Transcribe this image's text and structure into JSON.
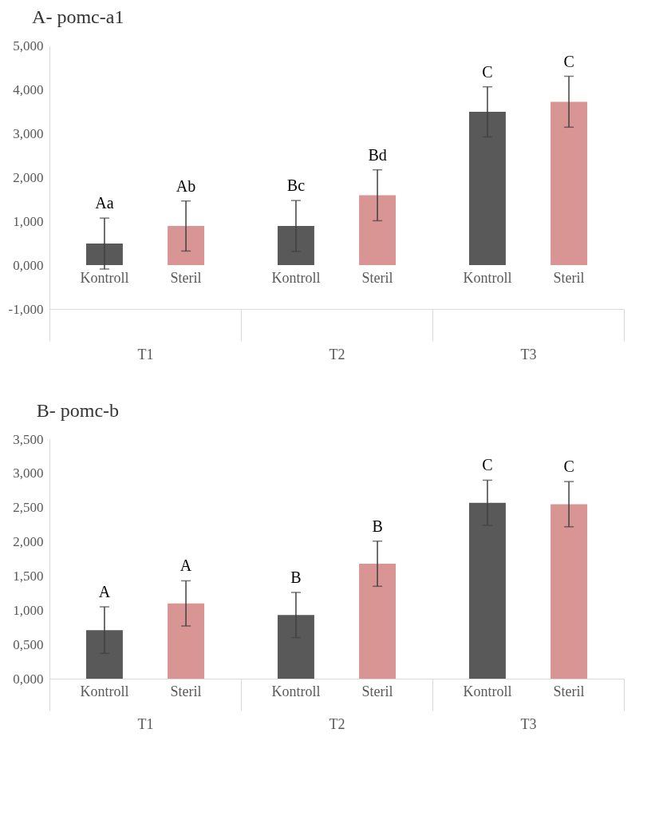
{
  "chart_data": [
    {
      "type": "bar",
      "title": "A- pomc-a1",
      "categories": [
        "T1",
        "T2",
        "T3"
      ],
      "series": [
        {
          "name": "Kontroll",
          "color": "#595959",
          "values": [
            0.49,
            0.89,
            3.49
          ],
          "errors": [
            0.58,
            0.58,
            0.57
          ],
          "value_labels": [
            "Aa",
            "Bc",
            "C"
          ]
        },
        {
          "name": "Steril",
          "color": "#d99594",
          "values": [
            0.89,
            1.59,
            3.72
          ],
          "errors": [
            0.57,
            0.58,
            0.58
          ],
          "value_labels": [
            "Ab",
            "Bd",
            "C"
          ]
        }
      ],
      "ylim": [
        -1,
        5
      ],
      "yticks": [
        {
          "value": -1,
          "label": "-1,000"
        },
        {
          "value": 0,
          "label": "0,000"
        },
        {
          "value": 1,
          "label": "1,000"
        },
        {
          "value": 2,
          "label": "2,000"
        },
        {
          "value": 3,
          "label": "3,000"
        },
        {
          "value": 4,
          "label": "4,000"
        },
        {
          "value": 5,
          "label": "5,000"
        }
      ],
      "grid": false,
      "legend": false
    },
    {
      "type": "bar",
      "title": "B- pomc-b",
      "categories": [
        "T1",
        "T2",
        "T3"
      ],
      "series": [
        {
          "name": "Kontroll",
          "color": "#595959",
          "values": [
            0.71,
            0.93,
            2.57
          ],
          "errors": [
            0.34,
            0.33,
            0.33
          ],
          "value_labels": [
            "A",
            "B",
            "C"
          ]
        },
        {
          "name": "Steril",
          "color": "#d99594",
          "values": [
            1.1,
            1.68,
            2.55
          ],
          "errors": [
            0.33,
            0.33,
            0.33
          ],
          "value_labels": [
            "A",
            "B",
            "C"
          ]
        }
      ],
      "ylim": [
        0,
        3.5
      ],
      "yticks": [
        {
          "value": 0,
          "label": "0,000"
        },
        {
          "value": 0.5,
          "label": "0,500"
        },
        {
          "value": 1,
          "label": "1,000"
        },
        {
          "value": 1.5,
          "label": "1,500"
        },
        {
          "value": 2,
          "label": "2,000"
        },
        {
          "value": 2.5,
          "label": "2,500"
        },
        {
          "value": 3,
          "label": "3,000"
        },
        {
          "value": 3.5,
          "label": "3,500"
        }
      ],
      "grid": false,
      "legend": false
    }
  ]
}
